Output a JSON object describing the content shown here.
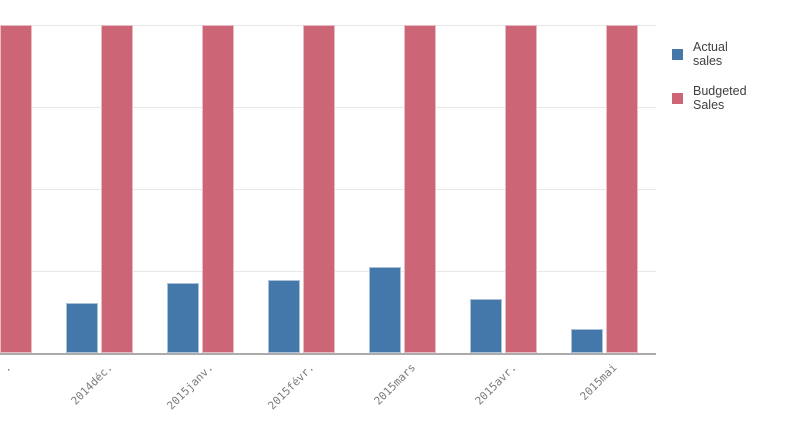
{
  "chart_data": {
    "type": "bar",
    "title": "",
    "xlabel": "",
    "ylabel": "",
    "categories": [
      ".",
      "2014déc.",
      "2015janv.",
      "2015févr.",
      "2015mars",
      "2015avr.",
      "2015mai"
    ],
    "series": [
      {
        "name": "Actual sales",
        "color": "#4477aa",
        "values_pct_of_axis_max": [
          null,
          15.2,
          21.2,
          22.4,
          26.1,
          16.6,
          7.3
        ]
      },
      {
        "name": "Budgeted Sales",
        "color": "#cc6677",
        "values_pct_of_axis_max": [
          100,
          100,
          100,
          100,
          100,
          100,
          100
        ]
      }
    ],
    "y_axis_tick_labels_visible": false,
    "grid": "horizontal",
    "gridline_color": "#e8e8e8",
    "axis_line_color": "#ababab",
    "legend_position": "right",
    "notes": "Leftmost category is clipped at the image edge: only its red bar and the trailing period of its rotated label are visible. Budgeted Sales bars span the full visible plot height (reach the top gridline)."
  },
  "legend": {
    "items": [
      {
        "label": "Actual sales",
        "color": "#4477aa"
      },
      {
        "label": "Budgeted Sales",
        "color": "#cc6677"
      }
    ]
  }
}
